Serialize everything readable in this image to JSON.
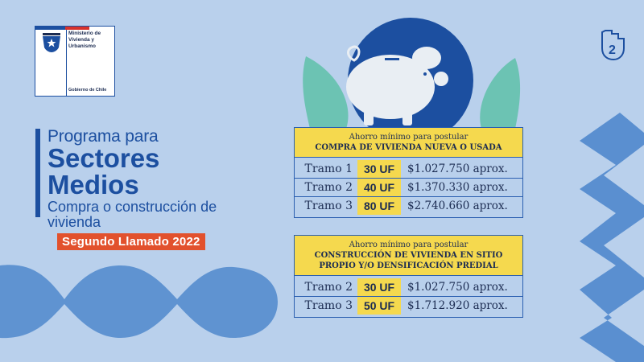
{
  "logo": {
    "ministerio": "Ministerio de\nVivienda y\nUrbanismo",
    "gobierno": "Gobierno de Chile"
  },
  "title": {
    "intro": "Programa para",
    "main_line1": "Sectores",
    "main_line2": "Medios",
    "subtitle": "Compra o construcción de vivienda",
    "badge": "Segundo Llamado 2022"
  },
  "table1": {
    "head_line1": "Ahorro mínimo para postular",
    "head_line2": "COMPRA DE VIVIENDA NUEVA O USADA",
    "rows": [
      {
        "tramo": "Tramo 1",
        "uf": "30 UF",
        "monto": "$1.027.750 aprox."
      },
      {
        "tramo": "Tramo 2",
        "uf": "40 UF",
        "monto": "$1.370.330 aprox."
      },
      {
        "tramo": "Tramo 3",
        "uf": "80 UF",
        "monto": "$2.740.660 aprox."
      }
    ]
  },
  "table2": {
    "head_line1": "Ahorro mínimo para postular",
    "head_line2": "CONSTRUCCIÓN DE VIVIENDA EN SITIO",
    "head_line3": "PROPIO Y/O DENSIFICACIÓN PREDIAL",
    "rows": [
      {
        "tramo": "Tramo 2",
        "uf": "30 UF",
        "monto": "$1.027.750 aprox."
      },
      {
        "tramo": "Tramo 3",
        "uf": "50 UF",
        "monto": "$1.712.920 aprox."
      }
    ]
  },
  "corner_number": "2",
  "colors": {
    "background": "#b9d0ec",
    "brand_blue": "#1c4fa0",
    "yellow": "#f5d94e",
    "orange": "#e2512d",
    "teal": "#6cc3b3"
  },
  "icons": [
    "piggy-bank-icon",
    "hand-two-icon",
    "chile-crest-icon"
  ]
}
